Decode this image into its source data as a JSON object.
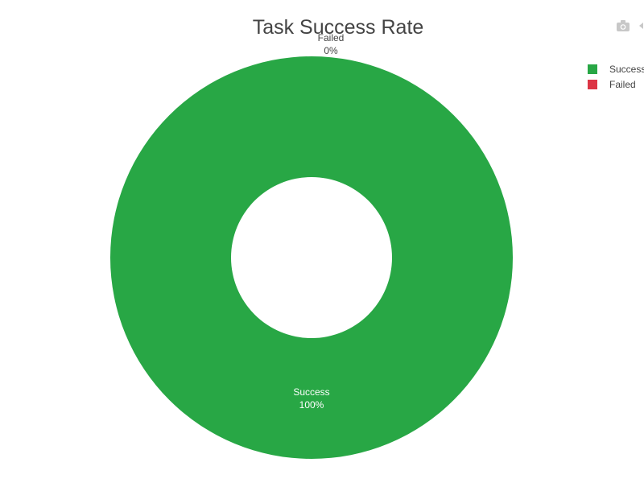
{
  "chart_data": {
    "type": "pie",
    "title": "Task Success Rate",
    "hole": 0.4,
    "categories": [
      "Success",
      "Failed"
    ],
    "values": [
      100,
      0
    ],
    "percent_labels": [
      "100%",
      "0%"
    ],
    "colors": [
      "#28a745",
      "#dc3545"
    ],
    "legend_position": "top-right"
  },
  "modebar": {
    "icons": [
      "camera-icon",
      "autoscale-icon"
    ]
  }
}
